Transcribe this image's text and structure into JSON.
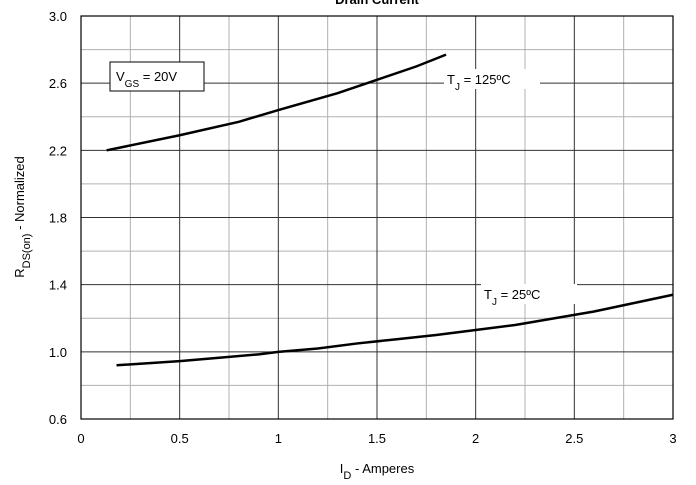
{
  "chart_data": {
    "type": "line",
    "title": "Drain Current",
    "xlabel": {
      "main": "I",
      "sub": "D",
      "rest": " - Amperes"
    },
    "ylabel": {
      "main": "R",
      "sub": "DS(on)",
      "rest": " - Normalized"
    },
    "xlim": [
      0,
      3
    ],
    "ylim": [
      0.6,
      3.0
    ],
    "xticks": [
      0,
      0.5,
      1,
      1.5,
      2,
      2.5,
      3
    ],
    "yticks": [
      0.6,
      {
        "value": 1,
        "label": "1.0"
      },
      1.4,
      1.8,
      2.2,
      2.6,
      {
        "value": 3,
        "label": "3.0"
      }
    ],
    "xticks_minor": [
      0.25,
      0.75,
      1.25,
      1.75,
      2.25,
      2.75
    ],
    "yticks_minor": [
      0.8,
      1.2,
      1.6,
      2.0,
      2.4,
      2.8
    ],
    "grid": true,
    "annotation": {
      "main": "V",
      "sub": "GS",
      "rest": " = 20V"
    },
    "series": [
      {
        "name": {
          "main": "T",
          "sub": "J",
          "rest": " = 125ºC"
        },
        "color": "#000000",
        "x": [
          0.13,
          0.5,
          0.8,
          1.0,
          1.3,
          1.5,
          1.7,
          1.85
        ],
        "values": [
          2.2,
          2.29,
          2.37,
          2.44,
          2.54,
          2.62,
          2.7,
          2.77
        ]
      },
      {
        "name": {
          "main": "T",
          "sub": "J",
          "rest": " = 25ºC"
        },
        "color": "#000000",
        "x": [
          0.18,
          0.5,
          0.7,
          0.9,
          1.0,
          1.2,
          1.4,
          1.6,
          1.8,
          2.0,
          2.2,
          2.4,
          2.6,
          2.8,
          3.0
        ],
        "values": [
          0.92,
          0.945,
          0.965,
          0.985,
          1.0,
          1.02,
          1.05,
          1.075,
          1.1,
          1.13,
          1.16,
          1.2,
          1.24,
          1.29,
          1.34
        ]
      }
    ]
  }
}
